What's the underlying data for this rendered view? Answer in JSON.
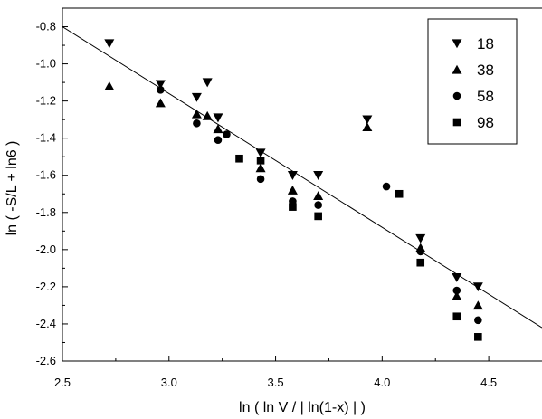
{
  "chart_data": {
    "type": "scatter",
    "title": "",
    "xlabel": "ln ( ln V / | ln(1-x) | )",
    "ylabel": "ln ( -S/L + ln6 )",
    "xlim": [
      2.5,
      4.75
    ],
    "ylim": [
      -2.6,
      -0.7
    ],
    "x_ticks": [
      2.5,
      3.0,
      3.5,
      4.0,
      4.5
    ],
    "x_tick_labels": [
      "2.5",
      "3.0",
      "3.5",
      "4.0",
      "4.5"
    ],
    "y_ticks": [
      -2.6,
      -2.4,
      -2.2,
      -2.0,
      -1.8,
      -1.6,
      -1.4,
      -1.2,
      -1.0,
      -0.8
    ],
    "y_tick_labels": [
      "-2.6",
      "-2.4",
      "-2.2",
      "-2.0",
      "-1.8",
      "-1.6",
      "-1.4",
      "-1.2",
      "-1.0",
      "-0.8"
    ],
    "grid": false,
    "legend_position": "top-right",
    "series": [
      {
        "name": "18",
        "marker": "triangle-down",
        "points": [
          [
            2.72,
            -0.89
          ],
          [
            2.96,
            -1.11
          ],
          [
            3.13,
            -1.18
          ],
          [
            3.18,
            -1.1
          ],
          [
            3.23,
            -1.29
          ],
          [
            3.43,
            -1.48
          ],
          [
            3.58,
            -1.6
          ],
          [
            3.7,
            -1.6
          ],
          [
            3.93,
            -1.3
          ],
          [
            4.18,
            -1.94
          ],
          [
            4.35,
            -2.15
          ],
          [
            4.45,
            -2.2
          ]
        ]
      },
      {
        "name": "38",
        "marker": "triangle-up",
        "points": [
          [
            2.72,
            -1.12
          ],
          [
            2.96,
            -1.21
          ],
          [
            3.13,
            -1.27
          ],
          [
            3.18,
            -1.28
          ],
          [
            3.23,
            -1.35
          ],
          [
            3.43,
            -1.56
          ],
          [
            3.58,
            -1.68
          ],
          [
            3.7,
            -1.71
          ],
          [
            3.93,
            -1.34
          ],
          [
            4.18,
            -1.99
          ],
          [
            4.35,
            -2.25
          ],
          [
            4.45,
            -2.3
          ]
        ]
      },
      {
        "name": "58",
        "marker": "circle",
        "points": [
          [
            2.96,
            -1.14
          ],
          [
            3.13,
            -1.32
          ],
          [
            3.23,
            -1.41
          ],
          [
            3.27,
            -1.38
          ],
          [
            3.43,
            -1.62
          ],
          [
            3.58,
            -1.74
          ],
          [
            3.7,
            -1.76
          ],
          [
            4.02,
            -1.66
          ],
          [
            4.18,
            -2.01
          ],
          [
            4.35,
            -2.22
          ],
          [
            4.45,
            -2.38
          ]
        ]
      },
      {
        "name": "98",
        "marker": "square",
        "points": [
          [
            3.33,
            -1.51
          ],
          [
            3.43,
            -1.52
          ],
          [
            3.58,
            -1.77
          ],
          [
            3.7,
            -1.82
          ],
          [
            4.08,
            -1.7
          ],
          [
            4.18,
            -2.07
          ],
          [
            4.35,
            -2.36
          ],
          [
            4.45,
            -2.47
          ]
        ]
      }
    ],
    "fit_line": {
      "from": [
        2.5,
        -0.8
      ],
      "to": [
        4.75,
        -2.42
      ]
    }
  }
}
